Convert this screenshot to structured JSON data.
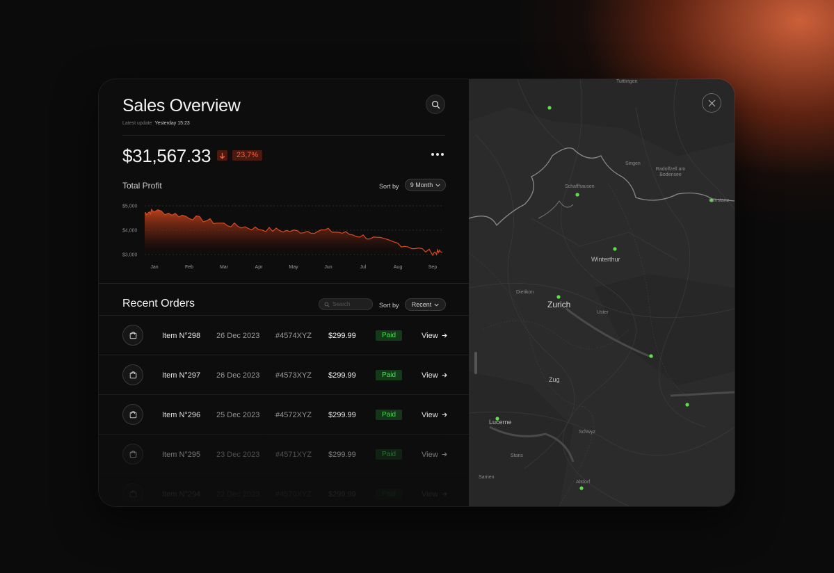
{
  "header": {
    "title": "Sales Overview",
    "latest_update_label": "Latest update",
    "latest_update_value": "Yesterday 15:23"
  },
  "summary": {
    "amount": "$31,567.33",
    "change": "23,7%",
    "change_direction": "down"
  },
  "profit": {
    "label": "Total Profit",
    "sort_label": "Sort by",
    "sort_value": "9 Month"
  },
  "chart_data": {
    "type": "area",
    "categories": [
      "Jan",
      "Feb",
      "Mar",
      "Apr",
      "May",
      "Jun",
      "Jul",
      "Aug",
      "Sep"
    ],
    "y_ticks": [
      "$5,000",
      "$4,000",
      "$3,000"
    ],
    "ylim": [
      3000,
      5000
    ],
    "values": [
      4800,
      4550,
      4250,
      4050,
      3950,
      3980,
      3750,
      3450,
      3080
    ],
    "color": "#c2431c"
  },
  "orders": {
    "title": "Recent Orders",
    "search_placeholder": "Search",
    "sort_label": "Sort by",
    "sort_value": "Recent",
    "rows": [
      {
        "name": "Item N°298",
        "date": "26 Dec 2023",
        "code": "#4574XYZ",
        "price": "$299.99",
        "status": "Paid",
        "action": "View"
      },
      {
        "name": "Item N°297",
        "date": "26 Dec 2023",
        "code": "#4573XYZ",
        "price": "$299.99",
        "status": "Paid",
        "action": "View"
      },
      {
        "name": "Item N°296",
        "date": "25 Dec 2023",
        "code": "#4572XYZ",
        "price": "$299.99",
        "status": "Paid",
        "action": "View"
      },
      {
        "name": "Item N°295",
        "date": "23 Dec 2023",
        "code": "#4571XYZ",
        "price": "$299.99",
        "status": "Paid",
        "action": "View"
      },
      {
        "name": "Item N°294",
        "date": "22 Dec 2023",
        "code": "#4570XYZ",
        "price": "$299.99",
        "status": "Paid",
        "action": "View"
      }
    ]
  },
  "map": {
    "cities": {
      "tuttlingen": "Tuttlingen",
      "singen": "Singen",
      "radolfzell": "Radolfzell am Bodensee",
      "schaffhausen": "Schaffhausen",
      "konstanz": "Konstanz",
      "winterthur": "Winterthur",
      "dietikon": "Dietikon",
      "zurich": "Zurich",
      "uster": "Uster",
      "zug": "Zug",
      "lucerne": "Lucerne",
      "schwyz": "Schwyz",
      "stans": "Stans",
      "sarnen": "Sarnen",
      "altdorf": "Altdorf"
    },
    "marker_color": "#5ee04a"
  }
}
